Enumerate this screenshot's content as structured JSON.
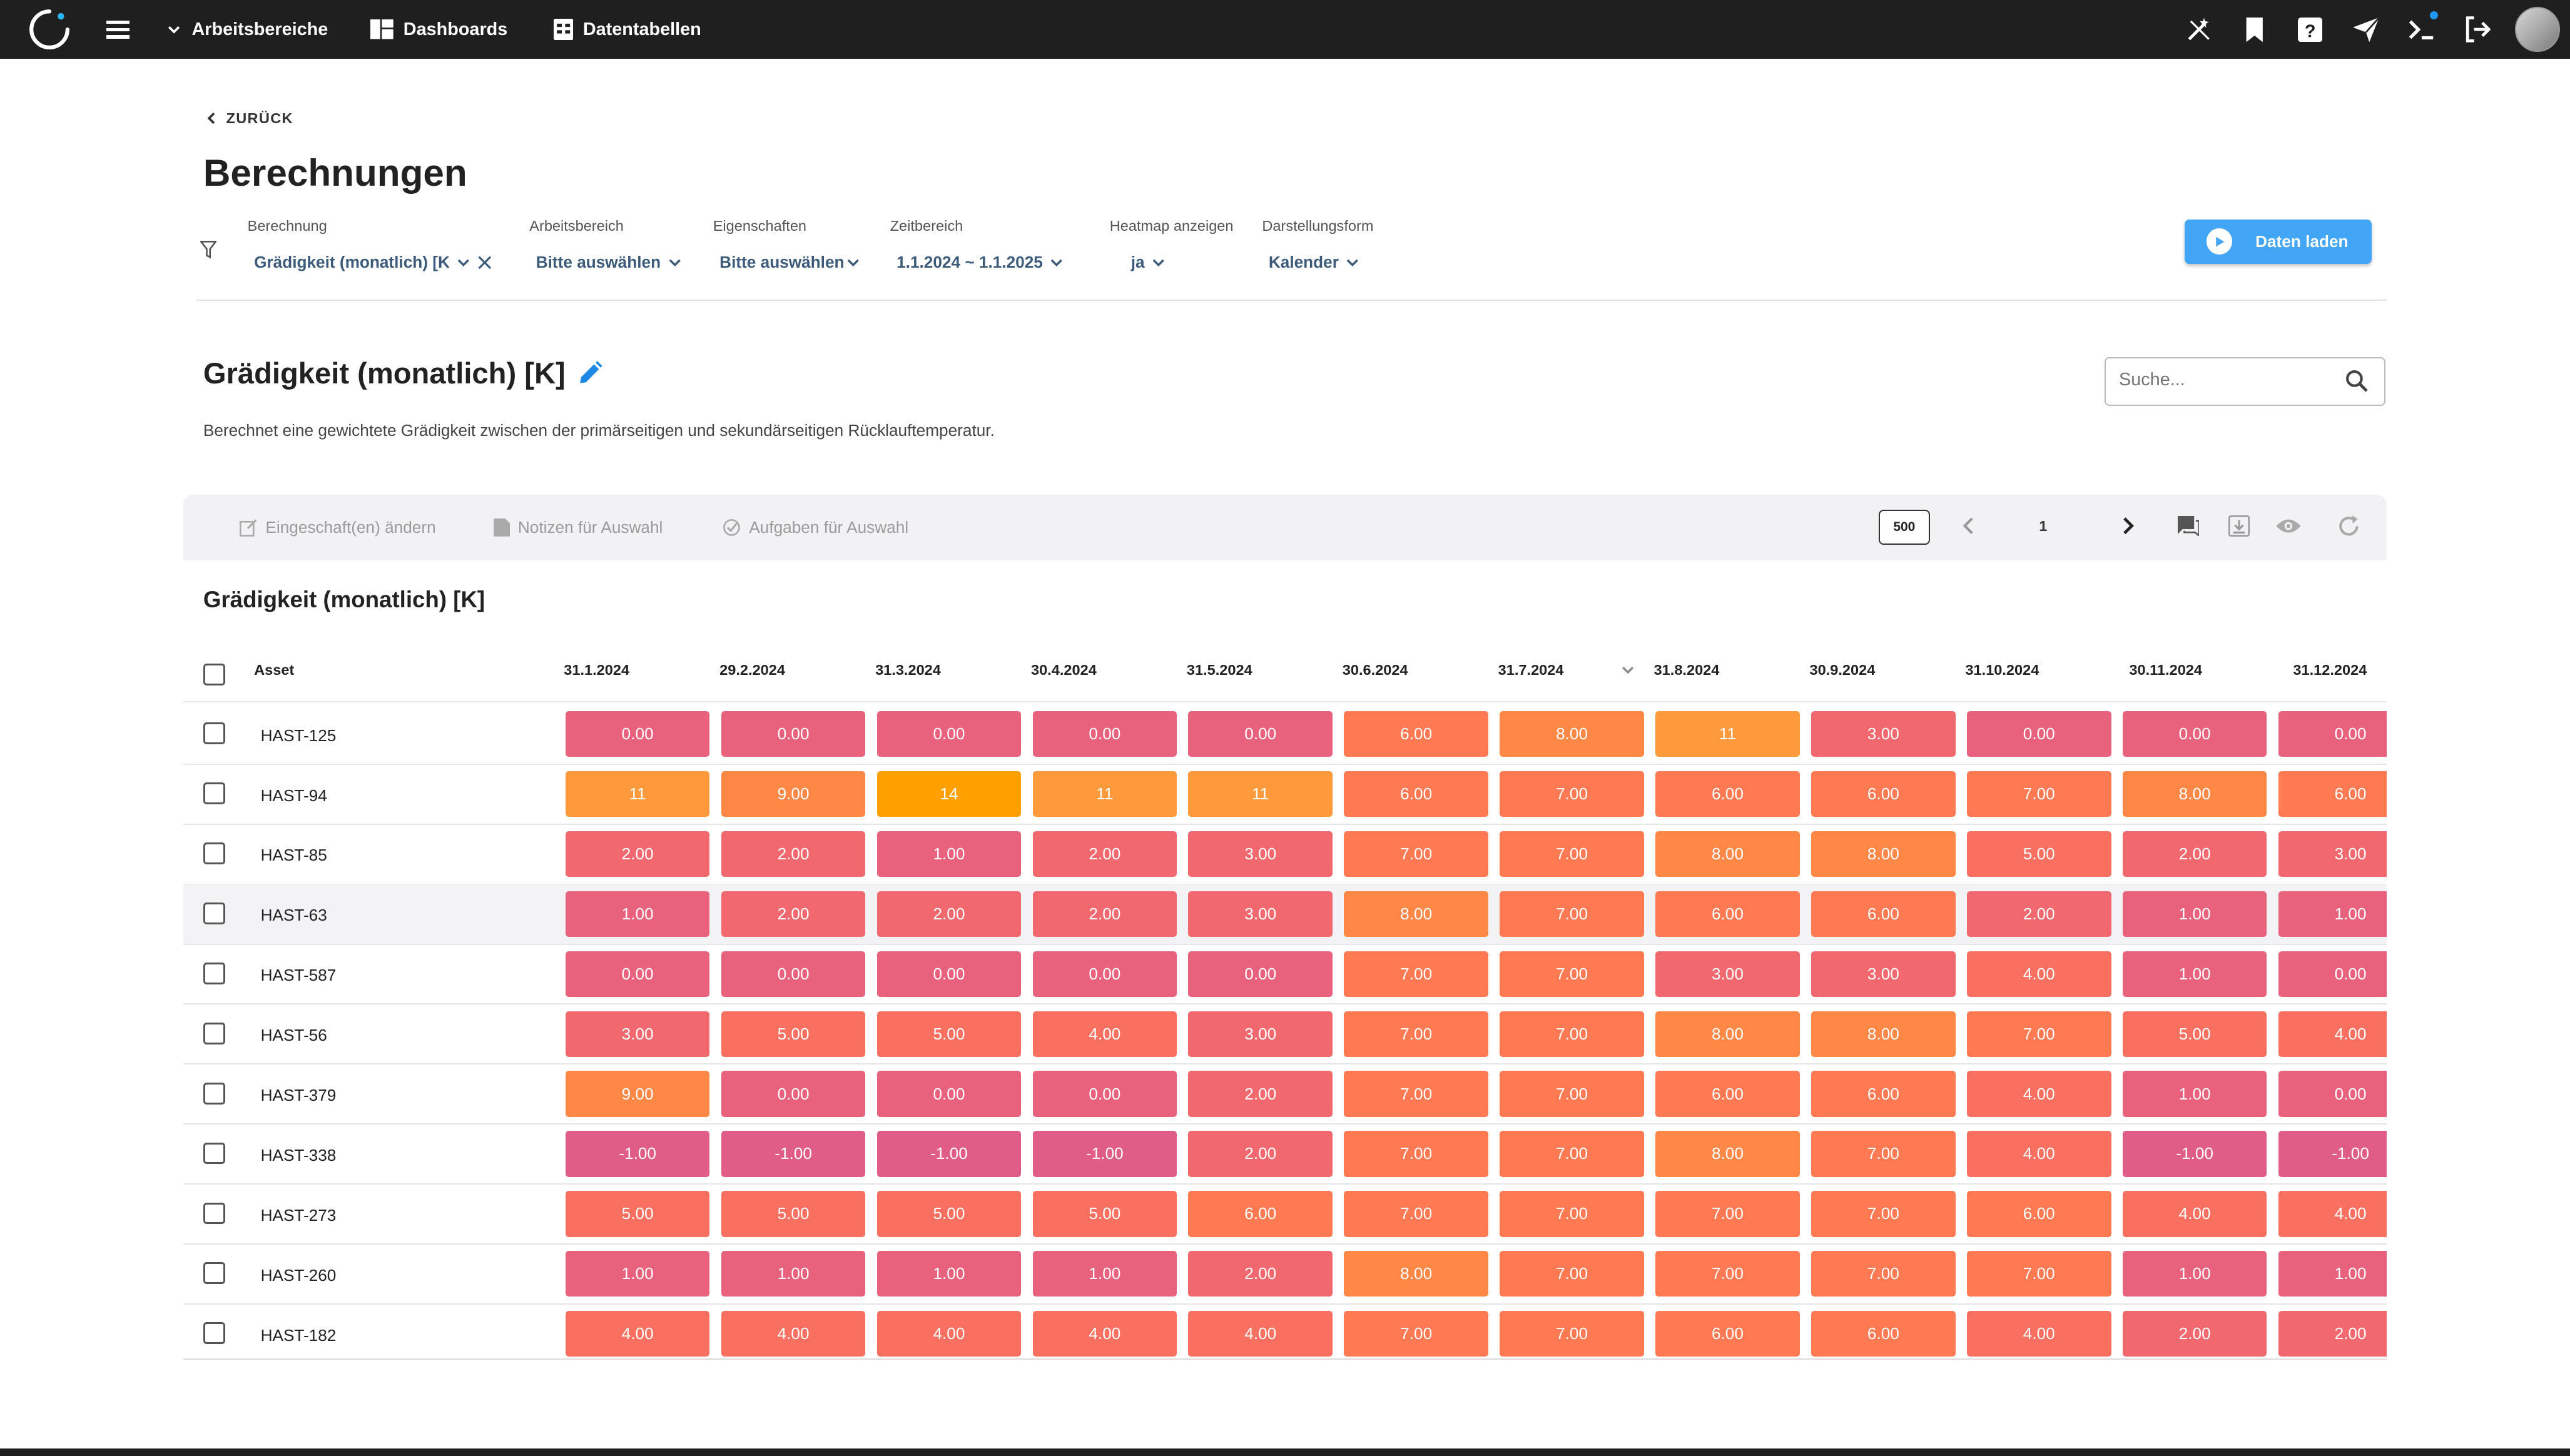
{
  "topbar": {
    "workspaces_label": "Arbeitsbereiche",
    "dashboards_label": "Dashboards",
    "datatables_label": "Datentabellen"
  },
  "header": {
    "back_label": "ZURÜCK",
    "title": "Berechnungen"
  },
  "filters": {
    "calculation": {
      "label": "Berechnung",
      "value": "Grädigkeit (monatlich) [K"
    },
    "workspace": {
      "label": "Arbeitsbereich",
      "value": "Bitte auswählen"
    },
    "properties": {
      "label": "Eigenschaften",
      "value": "Bitte auswählen"
    },
    "timerange": {
      "label": "Zeitbereich",
      "value": "1.1.2024 ~ 1.1.2025"
    },
    "heatmap": {
      "label": "Heatmap anzeigen",
      "value": "ja"
    },
    "display": {
      "label": "Darstellungsform",
      "value": "Kalender"
    }
  },
  "load_button": "Daten laden",
  "calculation": {
    "title": "Grädigkeit (monatlich) [K]",
    "description": "Berechnet eine gewichtete Grädigkeit zwischen der primärseitigen und sekundärseitigen Rücklauftemperatur."
  },
  "search": {
    "placeholder": "Suche..."
  },
  "toolbar": {
    "change_properties": "Eingeschaft(en) ändern",
    "notes": "Notizen für Auswahl",
    "tasks": "Aufgaben für Auswahl",
    "page_size": "500",
    "page": "1"
  },
  "table": {
    "title": "Grädigkeit (monatlich) [K]",
    "asset_header": "Asset",
    "columns": [
      "31.1.2024",
      "29.2.2024",
      "31.3.2024",
      "30.4.2024",
      "31.5.2024",
      "30.6.2024",
      "31.7.2024",
      "31.8.2024",
      "30.9.2024",
      "31.10.2024",
      "30.11.2024",
      "31.12.2024"
    ],
    "rows": [
      {
        "asset": "HAST-125",
        "values": [
          "0.00",
          "0.00",
          "0.00",
          "0.00",
          "0.00",
          "6.00",
          "8.00",
          "11",
          "3.00",
          "0.00",
          "0.00",
          "0.00"
        ]
      },
      {
        "asset": "HAST-94",
        "values": [
          "11",
          "9.00",
          "14",
          "11",
          "11",
          "6.00",
          "7.00",
          "6.00",
          "6.00",
          "7.00",
          "8.00",
          "6.00"
        ]
      },
      {
        "asset": "HAST-85",
        "values": [
          "2.00",
          "2.00",
          "1.00",
          "2.00",
          "3.00",
          "7.00",
          "7.00",
          "8.00",
          "8.00",
          "5.00",
          "2.00",
          "3.00"
        ]
      },
      {
        "asset": "HAST-63",
        "values": [
          "1.00",
          "2.00",
          "2.00",
          "2.00",
          "3.00",
          "8.00",
          "7.00",
          "6.00",
          "6.00",
          "2.00",
          "1.00",
          "1.00"
        ]
      },
      {
        "asset": "HAST-587",
        "values": [
          "0.00",
          "0.00",
          "0.00",
          "0.00",
          "0.00",
          "7.00",
          "7.00",
          "3.00",
          "3.00",
          "4.00",
          "1.00",
          "0.00"
        ]
      },
      {
        "asset": "HAST-56",
        "values": [
          "3.00",
          "5.00",
          "5.00",
          "4.00",
          "3.00",
          "7.00",
          "7.00",
          "8.00",
          "8.00",
          "7.00",
          "5.00",
          "4.00"
        ]
      },
      {
        "asset": "HAST-379",
        "values": [
          "9.00",
          "0.00",
          "0.00",
          "0.00",
          "2.00",
          "7.00",
          "7.00",
          "6.00",
          "6.00",
          "4.00",
          "1.00",
          "0.00"
        ]
      },
      {
        "asset": "HAST-338",
        "values": [
          "-1.00",
          "-1.00",
          "-1.00",
          "-1.00",
          "2.00",
          "7.00",
          "7.00",
          "8.00",
          "7.00",
          "4.00",
          "-1.00",
          "-1.00"
        ]
      },
      {
        "asset": "HAST-273",
        "values": [
          "5.00",
          "5.00",
          "5.00",
          "5.00",
          "6.00",
          "7.00",
          "7.00",
          "7.00",
          "7.00",
          "6.00",
          "4.00",
          "4.00"
        ]
      },
      {
        "asset": "HAST-260",
        "values": [
          "1.00",
          "1.00",
          "1.00",
          "1.00",
          "2.00",
          "8.00",
          "7.00",
          "7.00",
          "7.00",
          "7.00",
          "1.00",
          "1.00"
        ]
      },
      {
        "asset": "HAST-182",
        "values": [
          "4.00",
          "4.00",
          "4.00",
          "4.00",
          "4.00",
          "7.00",
          "7.00",
          "6.00",
          "6.00",
          "4.00",
          "2.00",
          "2.00"
        ]
      }
    ]
  },
  "colors": {
    "topbar": "#1f1f1f",
    "accent": "#42a5f5",
    "heat_low": "#e06185",
    "heat_mid": "#ff7e4f",
    "heat_high": "#ffa000"
  }
}
